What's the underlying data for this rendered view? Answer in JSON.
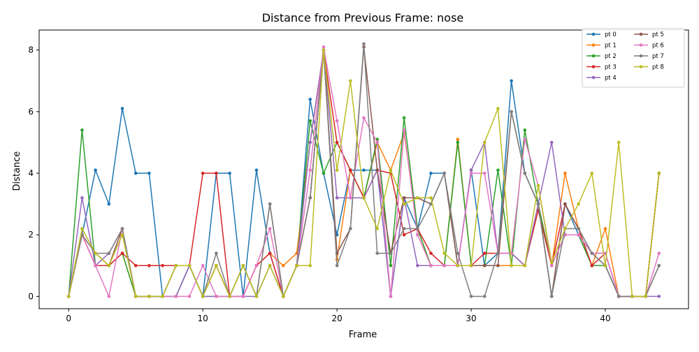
{
  "chart_data": {
    "type": "line",
    "title": "Distance from Previous Frame: nose",
    "xlabel": "Frame",
    "ylabel": "Distance",
    "xlim": [
      -2.2,
      46.2
    ],
    "ylim": [
      -0.4,
      8.65
    ],
    "xticks": [
      0,
      10,
      20,
      30,
      40
    ],
    "yticks": [
      0,
      2,
      4,
      6,
      8
    ],
    "grid": false,
    "legend_position": "top-right",
    "legend_columns": 2,
    "x": [
      0,
      1,
      2,
      3,
      4,
      5,
      6,
      7,
      8,
      9,
      10,
      11,
      12,
      13,
      14,
      15,
      16,
      17,
      18,
      19,
      20,
      21,
      22,
      23,
      24,
      25,
      26,
      27,
      28,
      29,
      30,
      31,
      32,
      33,
      34,
      35,
      36,
      37,
      38,
      39,
      40,
      41,
      42,
      43,
      44
    ],
    "series": [
      {
        "name": "pt 0",
        "color": "#1f77b4",
        "values": [
          0,
          2,
          4.1,
          3,
          6.1,
          4,
          4,
          0,
          0,
          1,
          0,
          4,
          4,
          0,
          4.1,
          1.4,
          0,
          1,
          6.4,
          4,
          2,
          4.1,
          4.1,
          4.1,
          0,
          3.2,
          2.2,
          4,
          4,
          1,
          4.1,
          1,
          1.4,
          7,
          4,
          3,
          0,
          3,
          2,
          1,
          1,
          0,
          0,
          0,
          4
        ]
      },
      {
        "name": "pt 1",
        "color": "#ff7f0e",
        "values": [
          0,
          2,
          1,
          1,
          1.4,
          0,
          0,
          0,
          1,
          1,
          0,
          1,
          0,
          0,
          1,
          1.4,
          1,
          1.4,
          5,
          8,
          1.2,
          4.1,
          3.2,
          5,
          4.1,
          5.3,
          2.2,
          1,
          1,
          5.1,
          1,
          1,
          1,
          1,
          1,
          3,
          1,
          4,
          2.2,
          1,
          2.2,
          0,
          0,
          0,
          4
        ]
      },
      {
        "name": "pt 2",
        "color": "#2ca02c",
        "values": [
          0,
          5.4,
          1,
          1,
          1.4,
          0,
          0,
          0,
          0,
          1,
          0,
          0,
          0,
          1,
          0,
          1,
          0,
          1,
          5.7,
          4,
          5,
          4.1,
          3.2,
          5.1,
          1,
          5.8,
          2.2,
          1,
          1,
          5,
          1,
          1,
          4.1,
          1,
          5.4,
          3,
          1,
          2,
          2,
          1,
          1,
          0,
          0,
          0,
          4
        ]
      },
      {
        "name": "pt 3",
        "color": "#d62728",
        "values": [
          0,
          2,
          1,
          1,
          1.4,
          1,
          1,
          1,
          1,
          1,
          4,
          4,
          0,
          0,
          1,
          1.4,
          0,
          1,
          3.2,
          8,
          5,
          4.1,
          3.2,
          4.1,
          4,
          2,
          2.2,
          1.4,
          1,
          1,
          1,
          1.4,
          1.4,
          1.4,
          1,
          2.8,
          1,
          3,
          2.2,
          1,
          1.4,
          0,
          0,
          0,
          4
        ]
      },
      {
        "name": "pt 4",
        "color": "#9467bd",
        "values": [
          0,
          3.2,
          1,
          1.4,
          2.2,
          0,
          0,
          0,
          0,
          1,
          0,
          0,
          0,
          0,
          0,
          1,
          0,
          1,
          5,
          8,
          3.2,
          3.2,
          3.2,
          4.1,
          0,
          3.2,
          1,
          1,
          1,
          1,
          4.1,
          5,
          1.4,
          1.4,
          1,
          3,
          5,
          2,
          2,
          1.4,
          1.4,
          0,
          0,
          0,
          0
        ]
      },
      {
        "name": "pt 5",
        "color": "#8c564b",
        "values": [
          0,
          2,
          1.4,
          1,
          2.2,
          0,
          0,
          0,
          1,
          1,
          0,
          1,
          0,
          1,
          0,
          3,
          0,
          1,
          3.2,
          8,
          1.4,
          2.2,
          8.1,
          4.1,
          1.4,
          3.2,
          3.2,
          3,
          4,
          1,
          1,
          1,
          1,
          6,
          4,
          3,
          0,
          3,
          2.2,
          1.4,
          1,
          0,
          0,
          0,
          1
        ]
      },
      {
        "name": "pt 6",
        "color": "#e377c2",
        "values": [
          0,
          2,
          1,
          0,
          2.2,
          0,
          0,
          0,
          0,
          0,
          1,
          0,
          0,
          0,
          1,
          2.2,
          0,
          1,
          4.1,
          8.1,
          5.7,
          3.2,
          5.8,
          5,
          0,
          5.4,
          2,
          1,
          1,
          1,
          4,
          4,
          1.4,
          1.4,
          5.1,
          3.6,
          1,
          2,
          2,
          1.4,
          1.4,
          0,
          0,
          0,
          1.4
        ]
      },
      {
        "name": "pt 7",
        "color": "#7f7f7f",
        "values": [
          0,
          2,
          1.4,
          1.4,
          2.2,
          0,
          0,
          0,
          1,
          1,
          0,
          1.4,
          0,
          1,
          0,
          3,
          0,
          1,
          3.2,
          8,
          1,
          2.2,
          8.2,
          1.4,
          1.4,
          2.2,
          2.2,
          3,
          4,
          1.4,
          0,
          0,
          1.4,
          6,
          4,
          3,
          0,
          2.2,
          2.2,
          1.4,
          1,
          0,
          0,
          0,
          1
        ]
      },
      {
        "name": "pt 8",
        "color": "#bcbd22",
        "values": [
          0,
          2.2,
          1.4,
          1,
          2,
          0,
          0,
          0,
          1,
          1,
          0,
          1,
          0,
          1,
          0,
          1,
          0,
          1,
          1,
          8,
          4.1,
          7,
          3.2,
          2.2,
          4.1,
          3,
          3.2,
          3.2,
          1.4,
          1,
          1,
          5,
          6.1,
          1,
          1,
          3.6,
          1.1,
          2.2,
          3,
          4,
          1,
          5,
          0,
          0,
          4
        ]
      }
    ]
  }
}
